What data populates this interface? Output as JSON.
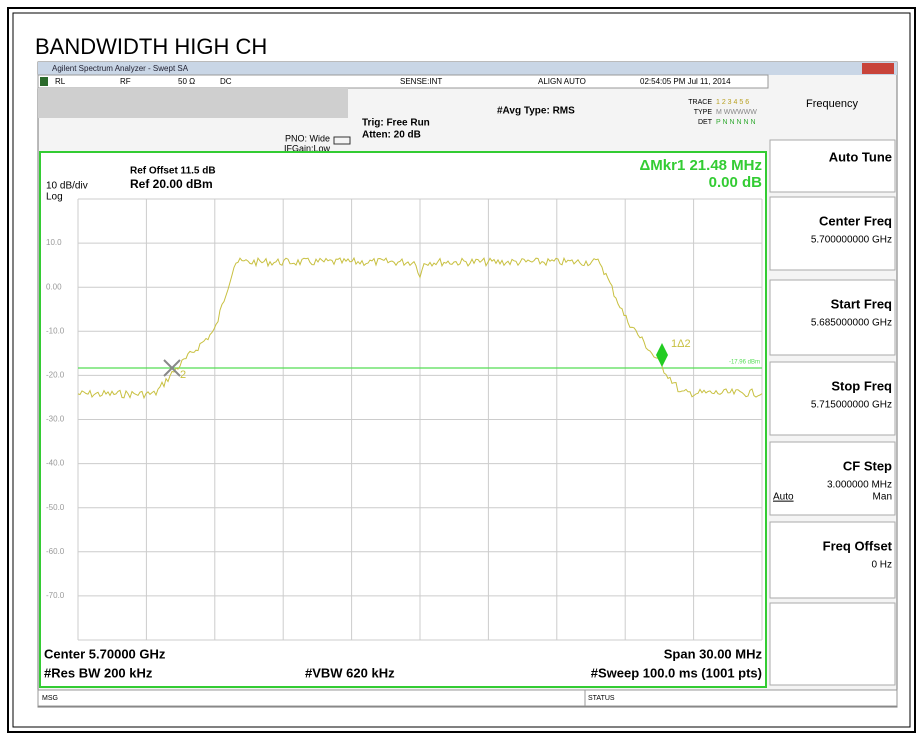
{
  "page_title": "BANDWIDTH HIGH CH",
  "window": {
    "title": "Agilent Spectrum Analyzer - Swept SA"
  },
  "status_row": {
    "rl": "RL",
    "rf": "RF",
    "impedance": "50 Ω",
    "coupling": "DC",
    "sense": "SENSE:INT",
    "align": "ALIGN AUTO",
    "datetime": "02:54:05 PM Jul 11, 2014"
  },
  "settings": {
    "pno": "PNO: Wide",
    "ifgain": "IFGain:Low",
    "trig": "Trig: Free Run",
    "atten": "Atten: 20 dB",
    "avg": "#Avg Type: RMS",
    "trace_label": "TRACE",
    "trace_nums": "1 2 3 4 5 6",
    "type_label": "TYPE",
    "type_vals": "M WWWWW",
    "det_label": "DET",
    "det_vals": "P N N N N N"
  },
  "display": {
    "ref_offset": "Ref Offset 11.5 dB",
    "ref": "Ref 20.00 dBm",
    "scale": "10 dB/div",
    "log": "Log",
    "marker_readout": "ΔMkr1 21.48 MHz",
    "marker_delta": "0.00 dB",
    "ref_line_label": "-17.96 dBm",
    "marker1_label": "1Δ2",
    "marker2_label": "2",
    "y_labels": [
      "10.0",
      "0.00",
      "-10.0",
      "-20.0",
      "-30.0",
      "-40.0",
      "-50.0",
      "-60.0",
      "-70.0"
    ]
  },
  "footer": {
    "center": "Center 5.70000 GHz",
    "res_bw": "#Res BW 200 kHz",
    "vbw": "#VBW 620 kHz",
    "span": "Span 30.00 MHz",
    "sweep": "#Sweep  100.0 ms (1001 pts)"
  },
  "statusbar": {
    "msg": "MSG",
    "status": "STATUS"
  },
  "softkeys": {
    "menu": "Frequency",
    "keys": [
      {
        "label": "Auto Tune"
      },
      {
        "label": "Center Freq",
        "value": "5.700000000 GHz"
      },
      {
        "label": "Start Freq",
        "value": "5.685000000 GHz"
      },
      {
        "label": "Stop Freq",
        "value": "5.715000000 GHz"
      },
      {
        "label": "CF Step",
        "value": "3.000000 MHz",
        "left": "Auto",
        "right": "Man"
      },
      {
        "label": "Freq Offset",
        "value": "0 Hz"
      }
    ]
  }
}
